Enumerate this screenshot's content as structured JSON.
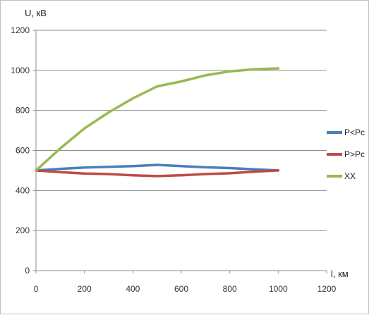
{
  "chart_data": {
    "type": "line",
    "title": "",
    "xlabel": "l, км",
    "ylabel": "U, кВ",
    "xlim": [
      0,
      1200
    ],
    "ylim": [
      0,
      1200
    ],
    "x_ticks": [
      0,
      200,
      400,
      600,
      800,
      1000,
      1200
    ],
    "y_ticks": [
      0,
      200,
      400,
      600,
      800,
      1000,
      1200
    ],
    "grid": "horizontal",
    "legend_position": "right",
    "series": [
      {
        "name": "P<Pc",
        "color": "#4a7ebb",
        "x": [
          0,
          100,
          200,
          300,
          400,
          500,
          600,
          700,
          800,
          900,
          1000
        ],
        "y": [
          500,
          508,
          515,
          518,
          522,
          528,
          522,
          516,
          512,
          506,
          500
        ]
      },
      {
        "name": "P>Pc",
        "color": "#be4b48",
        "x": [
          0,
          100,
          200,
          300,
          400,
          500,
          600,
          700,
          800,
          900,
          1000
        ],
        "y": [
          500,
          492,
          485,
          482,
          476,
          472,
          476,
          482,
          486,
          494,
          500
        ]
      },
      {
        "name": "XX",
        "color": "#98b954",
        "x": [
          0,
          100,
          200,
          300,
          400,
          500,
          600,
          700,
          800,
          900,
          1000
        ],
        "y": [
          500,
          610,
          710,
          790,
          860,
          920,
          945,
          975,
          995,
          1005,
          1010
        ]
      }
    ]
  }
}
